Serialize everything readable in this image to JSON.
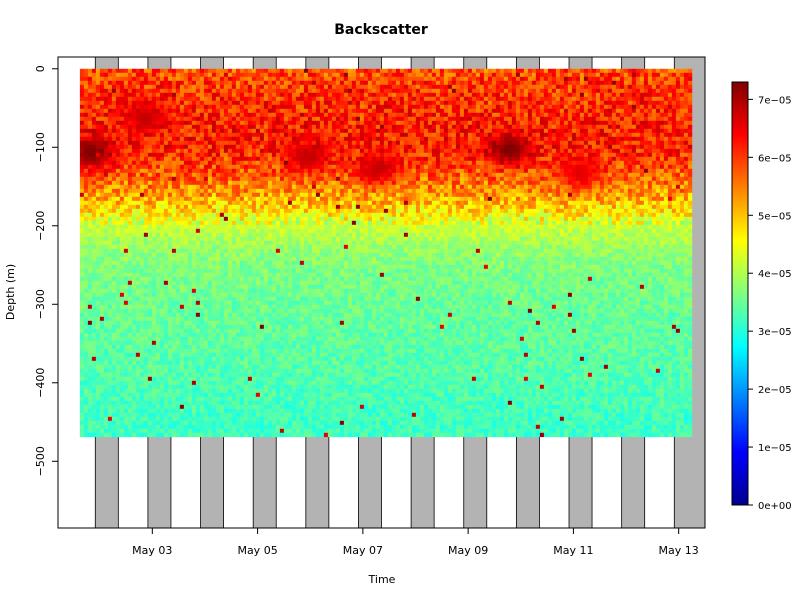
{
  "chart_data": {
    "type": "heatmap",
    "title": "Backscatter",
    "xlabel": "Time",
    "ylabel": "Depth (m)",
    "xlim": [
      "2023-05-01T05:00",
      "2023-05-13T12:00"
    ],
    "ylim": [
      -585,
      15
    ],
    "x_ticks": [
      {
        "date": "2023-05-03",
        "label": "May 03"
      },
      {
        "date": "2023-05-05",
        "label": "May 05"
      },
      {
        "date": "2023-05-07",
        "label": "May 07"
      },
      {
        "date": "2023-05-09",
        "label": "May 09"
      },
      {
        "date": "2023-05-11",
        "label": "May 11"
      },
      {
        "date": "2023-05-13",
        "label": "May 13"
      }
    ],
    "y_ticks": [
      0,
      -100,
      -200,
      -300,
      -400,
      -500
    ],
    "night_shading": [
      {
        "start": "2023-05-01T22:00",
        "end": "2023-05-02T08:30"
      },
      {
        "start": "2023-05-02T22:00",
        "end": "2023-05-03T08:30"
      },
      {
        "start": "2023-05-03T22:00",
        "end": "2023-05-04T08:30"
      },
      {
        "start": "2023-05-04T22:00",
        "end": "2023-05-05T08:30"
      },
      {
        "start": "2023-05-05T22:00",
        "end": "2023-05-06T08:30"
      },
      {
        "start": "2023-05-06T22:00",
        "end": "2023-05-07T08:30"
      },
      {
        "start": "2023-05-07T22:00",
        "end": "2023-05-08T08:30"
      },
      {
        "start": "2023-05-08T22:00",
        "end": "2023-05-09T08:30"
      },
      {
        "start": "2023-05-09T22:00",
        "end": "2023-05-10T08:30"
      },
      {
        "start": "2023-05-10T22:00",
        "end": "2023-05-11T08:30"
      },
      {
        "start": "2023-05-11T22:00",
        "end": "2023-05-12T08:30"
      },
      {
        "start": "2023-05-12T22:00",
        "end": "2023-05-13T12:00"
      }
    ],
    "data_extent": {
      "time_start": "2023-05-01T15:00",
      "time_end": "2023-05-13T05:00",
      "depth_top": 0,
      "depth_bottom": -465
    },
    "profiles": [
      {
        "depth": 0,
        "backscatter": 5.8e-05
      },
      {
        "depth": -20,
        "backscatter": 6e-05
      },
      {
        "depth": -50,
        "backscatter": 6.1e-05
      },
      {
        "depth": -80,
        "backscatter": 6.2e-05
      },
      {
        "depth": -100,
        "backscatter": 6.2e-05
      },
      {
        "depth": -130,
        "backscatter": 5.8e-05
      },
      {
        "depth": -160,
        "backscatter": 5.3e-05
      },
      {
        "depth": -180,
        "backscatter": 4.8e-05
      },
      {
        "depth": -200,
        "backscatter": 4.2e-05
      },
      {
        "depth": -230,
        "backscatter": 3.8e-05
      },
      {
        "depth": -260,
        "backscatter": 3.6e-05
      },
      {
        "depth": -300,
        "backscatter": 3.5e-05
      },
      {
        "depth": -350,
        "backscatter": 3.4e-05
      },
      {
        "depth": -400,
        "backscatter": 3.3e-05
      },
      {
        "depth": -440,
        "backscatter": 3.2e-05
      },
      {
        "depth": -465,
        "backscatter": 3.2e-05
      }
    ],
    "hotspots": [
      {
        "date": "2023-05-01T20:00",
        "depth": -105,
        "backscatter": 7.3e-05
      },
      {
        "date": "2023-05-05T22:00",
        "depth": -110,
        "backscatter": 6.8e-05
      },
      {
        "date": "2023-05-09T18:00",
        "depth": -100,
        "backscatter": 7.3e-05
      },
      {
        "date": "2023-05-07T06:00",
        "depth": -125,
        "backscatter": 6.8e-05
      },
      {
        "date": "2023-05-11T02:00",
        "depth": -130,
        "backscatter": 6.6e-05
      },
      {
        "date": "2023-05-02T20:00",
        "depth": -60,
        "backscatter": 6.8e-05
      }
    ],
    "colorbar": {
      "min": 0,
      "max": 7.3e-05,
      "tick_values": [
        0,
        1e-05,
        2e-05,
        3e-05,
        4e-05,
        5e-05,
        6e-05,
        7e-05
      ],
      "tick_labels": [
        "0e+00",
        "1e−05",
        "2e−05",
        "3e−05",
        "4e−05",
        "5e−05",
        "6e−05",
        "7e−05"
      ],
      "colors": [
        "#00008f",
        "#0000ff",
        "#0080ff",
        "#00ffff",
        "#80ff80",
        "#ffff00",
        "#ff8000",
        "#ff0000",
        "#800000"
      ]
    },
    "night_color": "#b3b3b3",
    "grid": false,
    "legend": "colorbar-right"
  }
}
